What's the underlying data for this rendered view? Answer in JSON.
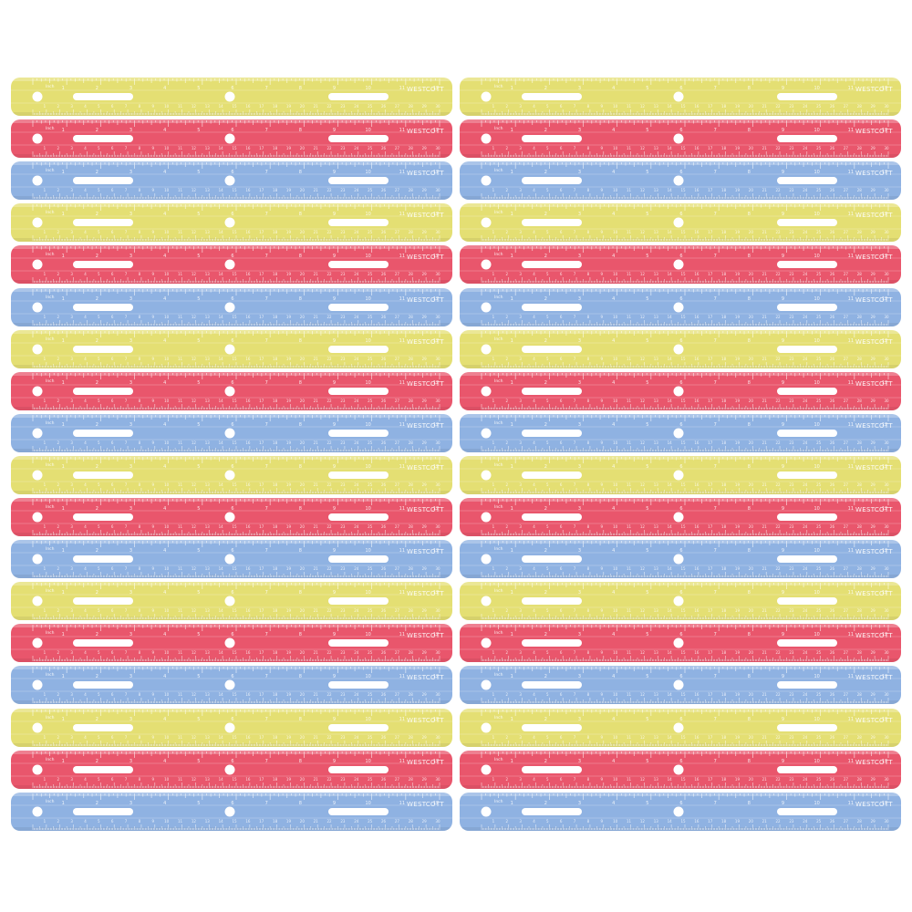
{
  "product": {
    "brand_label": "WESTCOTT",
    "inch_label": "Inch",
    "ruler_count": 36,
    "columns": 2,
    "rulers_per_column": 18,
    "color_cycle": [
      "yellow",
      "red",
      "blue"
    ]
  },
  "colors": {
    "yellow": "#e4df73",
    "red": "#e9566c",
    "blue": "#8fb2e2",
    "background": "#ffffff"
  },
  "inch_ticks": [
    "1",
    "2",
    "3",
    "4",
    "5",
    "6",
    "7",
    "8",
    "9",
    "10",
    "11",
    "12"
  ],
  "cm_ticks": [
    "1",
    "2",
    "3",
    "4",
    "5",
    "6",
    "7",
    "8",
    "9",
    "10",
    "11",
    "12",
    "13",
    "14",
    "15",
    "16",
    "17",
    "18",
    "19",
    "20",
    "21",
    "22",
    "23",
    "24",
    "25",
    "26",
    "27",
    "28",
    "29",
    "30"
  ]
}
